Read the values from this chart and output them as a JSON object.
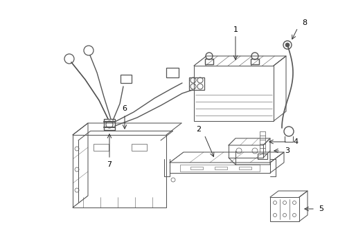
{
  "background_color": "#ffffff",
  "line_color": "#555555",
  "label_color": "#000000",
  "figsize": [
    4.89,
    3.6
  ],
  "dpi": 100,
  "arrow_color": "#333333",
  "lw": 0.75
}
